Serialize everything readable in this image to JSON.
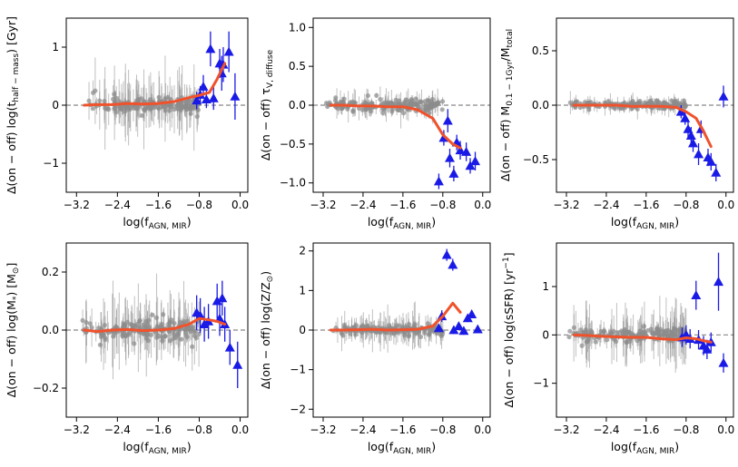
{
  "figure": {
    "note_colors": {
      "background": "#ffffff",
      "scatter_gray": "#8c8c8c",
      "agn_triangle": "#1a1ae6",
      "median_line": "#f0522c",
      "zero_line": "#888888"
    }
  },
  "chart_data": [
    {
      "type": "scatter",
      "id": "thalf",
      "xlabel": "log(f_AGN,MIR)",
      "ylabel": "Δ(on − off) log(t_half−mass) [Gyr]",
      "xlim": [
        -3.4,
        0.15
      ],
      "ylim": [
        -1.5,
        1.5
      ],
      "xticks": [
        -3.2,
        -2.4,
        -1.6,
        -0.8,
        0.0
      ],
      "yticks": [
        -1,
        0,
        1
      ],
      "ytick_labels": [
        "−1",
        "0",
        "1"
      ],
      "zero_line": 0,
      "spread": 0.07,
      "err_spread": 0.3,
      "err_max": 1.1,
      "seed": 11,
      "median_line": {
        "x": [
          -3.05,
          -2.8,
          -2.5,
          -2.2,
          -1.9,
          -1.6,
          -1.3,
          -1.0,
          -0.8,
          -0.6,
          -0.45,
          -0.3
        ],
        "y": [
          0.0,
          0.01,
          0.01,
          0.03,
          0.02,
          0.03,
          0.06,
          0.13,
          0.17,
          0.22,
          0.45,
          0.72
        ]
      },
      "agn_points": [
        {
          "x": -0.85,
          "y": 0.08,
          "err": 0.15
        },
        {
          "x": -0.78,
          "y": 0.18,
          "err": 0.15
        },
        {
          "x": -0.72,
          "y": 0.32,
          "err": 0.2
        },
        {
          "x": -0.66,
          "y": 0.1,
          "err": 0.15
        },
        {
          "x": -0.58,
          "y": 0.97,
          "err": 0.3
        },
        {
          "x": -0.52,
          "y": 0.12,
          "err": 0.2
        },
        {
          "x": -0.4,
          "y": 0.72,
          "err": 0.25
        },
        {
          "x": -0.36,
          "y": 0.55,
          "err": 0.3
        },
        {
          "x": -0.33,
          "y": 0.7,
          "err": 0.3
        },
        {
          "x": -0.22,
          "y": 0.92,
          "err": 0.35
        },
        {
          "x": -0.1,
          "y": 0.15,
          "err": 0.4
        }
      ]
    },
    {
      "type": "scatter",
      "id": "tau",
      "xlabel": "log(f_AGN,MIR)",
      "ylabel": "Δ(on − off) τ_V,diffuse",
      "xlim": [
        -3.4,
        0.15
      ],
      "ylim": [
        -1.12,
        1.12
      ],
      "xticks": [
        -3.2,
        -2.4,
        -1.6,
        -0.8,
        0.0
      ],
      "yticks": [
        -1.0,
        -0.5,
        0.0,
        0.5,
        1.0
      ],
      "ytick_labels": [
        "−1.0",
        "−0.5",
        "0.0",
        "0.5",
        "1.0"
      ],
      "zero_line": 0,
      "spread": 0.04,
      "err_spread": 0.08,
      "err_max": 0.3,
      "seed": 23,
      "median_line": {
        "x": [
          -3.05,
          -2.8,
          -2.5,
          -2.2,
          -1.9,
          -1.6,
          -1.3,
          -1.0,
          -0.8,
          -0.6,
          -0.45
        ],
        "y": [
          0.0,
          0.0,
          -0.01,
          -0.01,
          -0.02,
          -0.02,
          -0.06,
          -0.17,
          -0.38,
          -0.5,
          -0.55
        ]
      },
      "agn_points": [
        {
          "x": -0.88,
          "y": -0.98,
          "err": 0.1
        },
        {
          "x": -0.78,
          "y": -0.42,
          "err": 0.1
        },
        {
          "x": -0.7,
          "y": -0.2,
          "err": 0.15
        },
        {
          "x": -0.66,
          "y": -0.68,
          "err": 0.12
        },
        {
          "x": -0.58,
          "y": -0.88,
          "err": 0.1
        },
        {
          "x": -0.52,
          "y": -0.48,
          "err": 0.1
        },
        {
          "x": -0.45,
          "y": -0.58,
          "err": 0.12
        },
        {
          "x": -0.33,
          "y": -0.6,
          "err": 0.12
        },
        {
          "x": -0.25,
          "y": -0.78,
          "err": 0.1
        },
        {
          "x": -0.15,
          "y": -0.72,
          "err": 0.12
        }
      ]
    },
    {
      "type": "scatter",
      "id": "mfrac",
      "xlabel": "log(f_AGN,MIR)",
      "ylabel": "Δ(on − off) M_0.1−1Gyr/M_total",
      "xlim": [
        -3.4,
        0.15
      ],
      "ylim": [
        -0.8,
        0.8
      ],
      "xticks": [
        -3.2,
        -2.4,
        -1.6,
        -0.8,
        0.0
      ],
      "yticks": [
        -0.5,
        0.0,
        0.5
      ],
      "ytick_labels": [
        "−0.5",
        "0.0",
        "0.5"
      ],
      "zero_line": 0,
      "spread": 0.02,
      "err_spread": 0.04,
      "err_max": 0.12,
      "seed": 37,
      "median_line": {
        "x": [
          -3.05,
          -2.8,
          -2.5,
          -2.2,
          -1.9,
          -1.6,
          -1.3,
          -1.0,
          -0.8,
          -0.6,
          -0.45,
          -0.3
        ],
        "y": [
          0.0,
          0.0,
          0.0,
          0.0,
          -0.01,
          -0.01,
          -0.01,
          -0.02,
          -0.06,
          -0.12,
          -0.24,
          -0.38
        ]
      },
      "agn_points": [
        {
          "x": -0.9,
          "y": -0.06,
          "err": 0.06
        },
        {
          "x": -0.82,
          "y": -0.12,
          "err": 0.06
        },
        {
          "x": -0.76,
          "y": -0.22,
          "err": 0.08
        },
        {
          "x": -0.7,
          "y": -0.28,
          "err": 0.08
        },
        {
          "x": -0.66,
          "y": -0.35,
          "err": 0.08
        },
        {
          "x": -0.55,
          "y": -0.45,
          "err": 0.1
        },
        {
          "x": -0.5,
          "y": -0.22,
          "err": 0.08
        },
        {
          "x": -0.36,
          "y": -0.48,
          "err": 0.08
        },
        {
          "x": -0.3,
          "y": -0.52,
          "err": 0.08
        },
        {
          "x": -0.2,
          "y": -0.62,
          "err": 0.08
        },
        {
          "x": -0.05,
          "y": 0.08,
          "err": 0.1
        }
      ]
    },
    {
      "type": "scatter",
      "id": "mstar",
      "xlabel": "log(f_AGN,MIR)",
      "ylabel": "Δ(on − off) log(M*) [M⊙]",
      "xlim": [
        -3.4,
        0.15
      ],
      "ylim": [
        -0.3,
        0.3
      ],
      "xticks": [
        -3.2,
        -2.4,
        -1.6,
        -0.8,
        0.0
      ],
      "yticks": [
        -0.2,
        0.0,
        0.2
      ],
      "ytick_labels": [
        "−0.2",
        "0.0",
        "0.2"
      ],
      "zero_line": 0,
      "spread": 0.02,
      "err_spread": 0.07,
      "err_max": 0.2,
      "seed": 41,
      "median_line": {
        "x": [
          -3.05,
          -2.8,
          -2.5,
          -2.2,
          -1.9,
          -1.6,
          -1.3,
          -1.0,
          -0.8,
          -0.6,
          -0.45,
          -0.3
        ],
        "y": [
          0.0,
          -0.005,
          0.0,
          0.002,
          -0.002,
          0.0,
          0.005,
          0.02,
          0.04,
          0.035,
          0.03,
          0.02
        ]
      },
      "agn_points": [
        {
          "x": -0.85,
          "y": 0.06,
          "err": 0.06
        },
        {
          "x": -0.78,
          "y": 0.05,
          "err": 0.06
        },
        {
          "x": -0.7,
          "y": 0.02,
          "err": 0.06
        },
        {
          "x": -0.62,
          "y": 0.03,
          "err": 0.06
        },
        {
          "x": -0.45,
          "y": 0.1,
          "err": 0.06
        },
        {
          "x": -0.4,
          "y": 0.04,
          "err": 0.06
        },
        {
          "x": -0.35,
          "y": 0.11,
          "err": 0.06
        },
        {
          "x": -0.3,
          "y": 0.02,
          "err": 0.06
        },
        {
          "x": -0.2,
          "y": -0.06,
          "err": 0.06
        },
        {
          "x": -0.05,
          "y": -0.12,
          "err": 0.08
        }
      ]
    },
    {
      "type": "scatter",
      "id": "metal",
      "xlabel": "log(f_AGN,MIR)",
      "ylabel": "Δ(on − off) log(Z/Z⊙)",
      "xlim": [
        -3.4,
        0.15
      ],
      "ylim": [
        -2.2,
        2.2
      ],
      "xticks": [
        -3.2,
        -2.4,
        -1.6,
        -0.8,
        0.0
      ],
      "yticks": [
        -2,
        -1,
        0,
        1,
        2
      ],
      "ytick_labels": [
        "−2",
        "−1",
        "0",
        "1",
        "2"
      ],
      "zero_line": 0,
      "spread": 0.06,
      "err_spread": 0.25,
      "err_max": 0.9,
      "seed": 53,
      "median_line": {
        "x": [
          -3.05,
          -2.8,
          -2.5,
          -2.2,
          -1.9,
          -1.6,
          -1.3,
          -1.0,
          -0.8,
          -0.6,
          -0.45
        ],
        "y": [
          0.0,
          0.0,
          0.01,
          0.02,
          0.0,
          0.01,
          0.02,
          0.1,
          0.35,
          0.68,
          0.45
        ]
      },
      "agn_points": [
        {
          "x": -0.88,
          "y": 0.05,
          "err": 0.1
        },
        {
          "x": -0.82,
          "y": 0.35,
          "err": 0.15
        },
        {
          "x": -0.72,
          "y": 1.9,
          "err": 0.15
        },
        {
          "x": -0.6,
          "y": 1.65,
          "err": 0.15
        },
        {
          "x": -0.58,
          "y": 0.0,
          "err": 0.1
        },
        {
          "x": -0.48,
          "y": 0.1,
          "err": 0.1
        },
        {
          "x": -0.38,
          "y": -0.02,
          "err": 0.1
        },
        {
          "x": -0.3,
          "y": 0.3,
          "err": 0.1
        },
        {
          "x": -0.22,
          "y": 0.4,
          "err": 0.1
        },
        {
          "x": -0.1,
          "y": 0.02,
          "err": 0.1
        }
      ]
    },
    {
      "type": "scatter",
      "id": "ssfr",
      "xlabel": "log(f_AGN,MIR)",
      "ylabel": "Δ(on − off) log(sSFR) [yr⁻¹]",
      "xlim": [
        -3.4,
        0.15
      ],
      "ylim": [
        -1.7,
        1.9
      ],
      "xticks": [
        -3.2,
        -2.4,
        -1.6,
        -0.8,
        0.0
      ],
      "yticks": [
        -1,
        0,
        1
      ],
      "ytick_labels": [
        "−1",
        "0",
        "1"
      ],
      "zero_line": 0,
      "spread": 0.07,
      "err_spread": 0.3,
      "err_max": 1.4,
      "seed": 67,
      "median_line": {
        "x": [
          -3.05,
          -2.8,
          -2.5,
          -2.2,
          -1.9,
          -1.6,
          -1.3,
          -1.0,
          -0.8,
          -0.6,
          -0.45,
          -0.3
        ],
        "y": [
          0.0,
          -0.01,
          -0.03,
          -0.04,
          -0.05,
          -0.05,
          -0.08,
          -0.1,
          -0.06,
          -0.08,
          -0.12,
          -0.15
        ]
      },
      "agn_points": [
        {
          "x": -0.88,
          "y": -0.05,
          "err": 0.2
        },
        {
          "x": -0.8,
          "y": 0.0,
          "err": 0.2
        },
        {
          "x": -0.72,
          "y": -0.08,
          "err": 0.2
        },
        {
          "x": -0.6,
          "y": 0.82,
          "err": 0.3
        },
        {
          "x": -0.55,
          "y": -0.1,
          "err": 0.2
        },
        {
          "x": -0.45,
          "y": -0.22,
          "err": 0.2
        },
        {
          "x": -0.38,
          "y": -0.3,
          "err": 0.2
        },
        {
          "x": -0.3,
          "y": -0.15,
          "err": 0.2
        },
        {
          "x": -0.15,
          "y": 1.1,
          "err": 0.6
        },
        {
          "x": -0.05,
          "y": -0.58,
          "err": 0.2
        }
      ]
    }
  ]
}
